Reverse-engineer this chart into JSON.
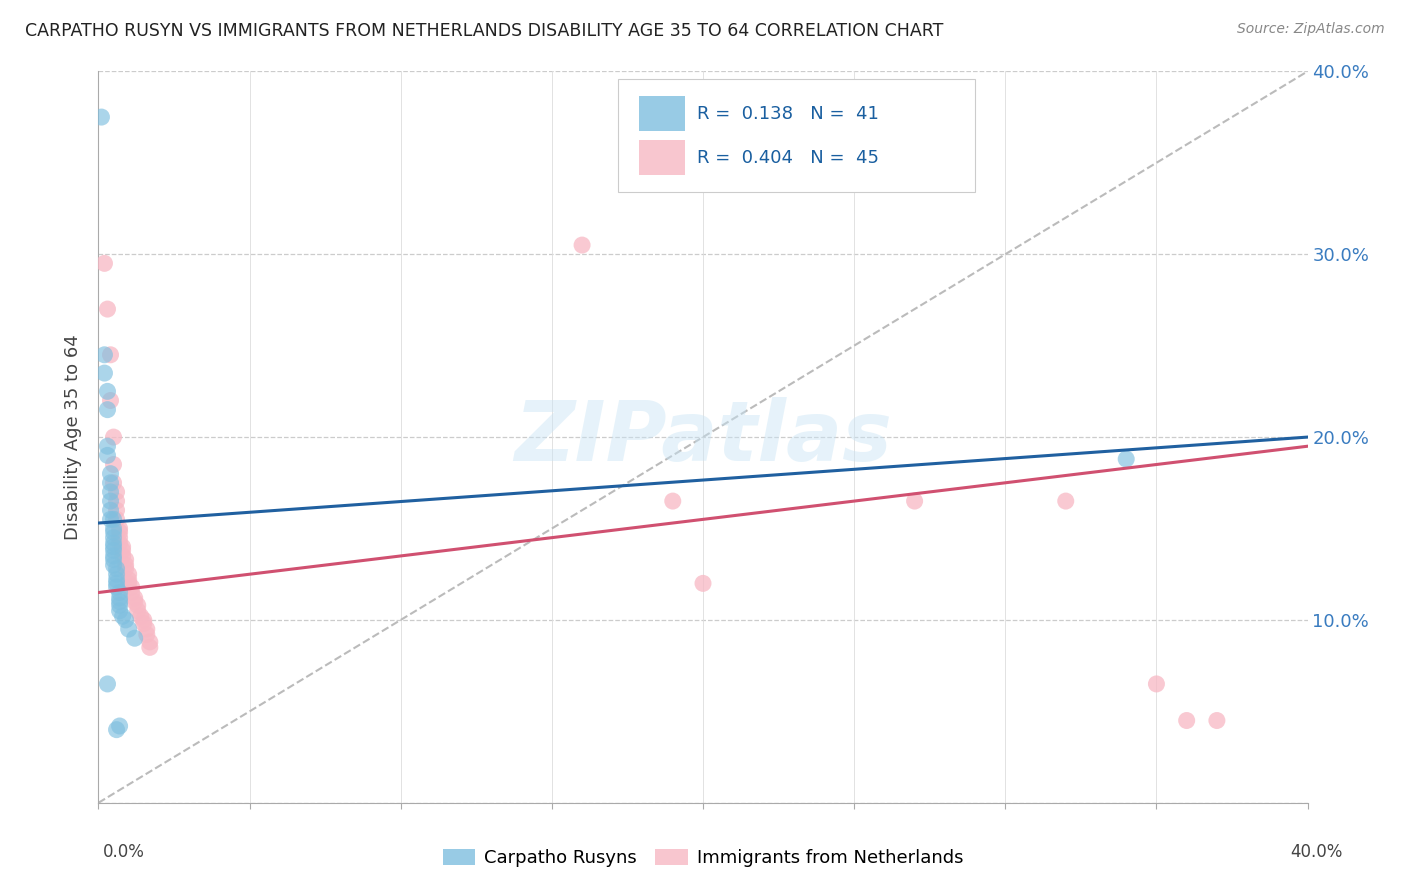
{
  "title": "CARPATHO RUSYN VS IMMIGRANTS FROM NETHERLANDS DISABILITY AGE 35 TO 64 CORRELATION CHART",
  "source": "Source: ZipAtlas.com",
  "ylabel": "Disability Age 35 to 64",
  "xlim": [
    0.0,
    0.4
  ],
  "ylim": [
    0.0,
    0.4
  ],
  "xticks": [
    0.0,
    0.05,
    0.1,
    0.15,
    0.2,
    0.25,
    0.3,
    0.35,
    0.4
  ],
  "yticks": [
    0.0,
    0.1,
    0.2,
    0.3,
    0.4
  ],
  "right_yticklabels": [
    "",
    "10.0%",
    "20.0%",
    "30.0%",
    "40.0%"
  ],
  "series1_label": "Carpatho Rusyns",
  "series1_color": "#7fbfdf",
  "series1_line_color": "#2060a0",
  "series1_R": "0.138",
  "series1_N": "41",
  "series2_label": "Immigrants from Netherlands",
  "series2_color": "#f7b8c4",
  "series2_line_color": "#d05070",
  "series2_R": "0.404",
  "series2_N": "45",
  "watermark": "ZIPatlas",
  "blue_scatter": [
    [
      0.001,
      0.375
    ],
    [
      0.002,
      0.245
    ],
    [
      0.002,
      0.235
    ],
    [
      0.003,
      0.225
    ],
    [
      0.003,
      0.215
    ],
    [
      0.003,
      0.195
    ],
    [
      0.003,
      0.19
    ],
    [
      0.004,
      0.18
    ],
    [
      0.004,
      0.175
    ],
    [
      0.004,
      0.17
    ],
    [
      0.004,
      0.165
    ],
    [
      0.004,
      0.16
    ],
    [
      0.004,
      0.155
    ],
    [
      0.005,
      0.155
    ],
    [
      0.005,
      0.15
    ],
    [
      0.005,
      0.148
    ],
    [
      0.005,
      0.145
    ],
    [
      0.005,
      0.142
    ],
    [
      0.005,
      0.14
    ],
    [
      0.005,
      0.138
    ],
    [
      0.005,
      0.135
    ],
    [
      0.005,
      0.133
    ],
    [
      0.005,
      0.13
    ],
    [
      0.006,
      0.128
    ],
    [
      0.006,
      0.125
    ],
    [
      0.006,
      0.122
    ],
    [
      0.006,
      0.12
    ],
    [
      0.006,
      0.118
    ],
    [
      0.007,
      0.115
    ],
    [
      0.007,
      0.112
    ],
    [
      0.007,
      0.11
    ],
    [
      0.007,
      0.108
    ],
    [
      0.007,
      0.105
    ],
    [
      0.008,
      0.102
    ],
    [
      0.009,
      0.1
    ],
    [
      0.01,
      0.095
    ],
    [
      0.012,
      0.09
    ],
    [
      0.003,
      0.065
    ],
    [
      0.34,
      0.188
    ],
    [
      0.006,
      0.04
    ],
    [
      0.007,
      0.042
    ]
  ],
  "pink_scatter": [
    [
      0.002,
      0.295
    ],
    [
      0.003,
      0.27
    ],
    [
      0.004,
      0.245
    ],
    [
      0.004,
      0.22
    ],
    [
      0.005,
      0.2
    ],
    [
      0.005,
      0.185
    ],
    [
      0.005,
      0.175
    ],
    [
      0.006,
      0.17
    ],
    [
      0.006,
      0.165
    ],
    [
      0.006,
      0.16
    ],
    [
      0.006,
      0.155
    ],
    [
      0.007,
      0.15
    ],
    [
      0.007,
      0.148
    ],
    [
      0.007,
      0.145
    ],
    [
      0.007,
      0.142
    ],
    [
      0.008,
      0.14
    ],
    [
      0.008,
      0.138
    ],
    [
      0.008,
      0.135
    ],
    [
      0.009,
      0.133
    ],
    [
      0.009,
      0.13
    ],
    [
      0.009,
      0.128
    ],
    [
      0.01,
      0.125
    ],
    [
      0.01,
      0.122
    ],
    [
      0.01,
      0.12
    ],
    [
      0.011,
      0.118
    ],
    [
      0.011,
      0.115
    ],
    [
      0.012,
      0.112
    ],
    [
      0.012,
      0.11
    ],
    [
      0.013,
      0.108
    ],
    [
      0.013,
      0.105
    ],
    [
      0.014,
      0.102
    ],
    [
      0.015,
      0.1
    ],
    [
      0.015,
      0.098
    ],
    [
      0.016,
      0.095
    ],
    [
      0.016,
      0.092
    ],
    [
      0.017,
      0.088
    ],
    [
      0.017,
      0.085
    ],
    [
      0.16,
      0.305
    ],
    [
      0.19,
      0.165
    ],
    [
      0.2,
      0.12
    ],
    [
      0.27,
      0.165
    ],
    [
      0.32,
      0.165
    ],
    [
      0.35,
      0.065
    ],
    [
      0.36,
      0.045
    ],
    [
      0.37,
      0.045
    ]
  ],
  "blue_line": [
    [
      0.0,
      0.153
    ],
    [
      0.4,
      0.2
    ]
  ],
  "pink_line": [
    [
      0.0,
      0.115
    ],
    [
      0.4,
      0.195
    ]
  ],
  "diagonal_line": [
    [
      0.0,
      0.0
    ],
    [
      0.4,
      0.4
    ]
  ]
}
